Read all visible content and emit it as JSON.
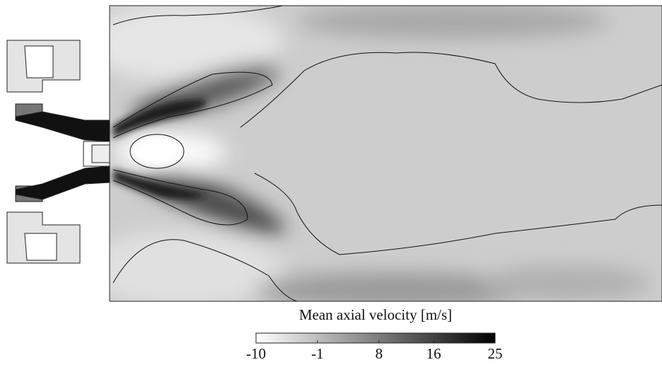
{
  "chart_data": {
    "type": "heatmap",
    "colorbar_label": "Mean axial velocity [m/s]",
    "clim": [
      -10,
      25
    ],
    "cticks": [
      -10,
      -1,
      8,
      16,
      25
    ],
    "colormap": [
      "#ffffff",
      "#000000"
    ]
  }
}
